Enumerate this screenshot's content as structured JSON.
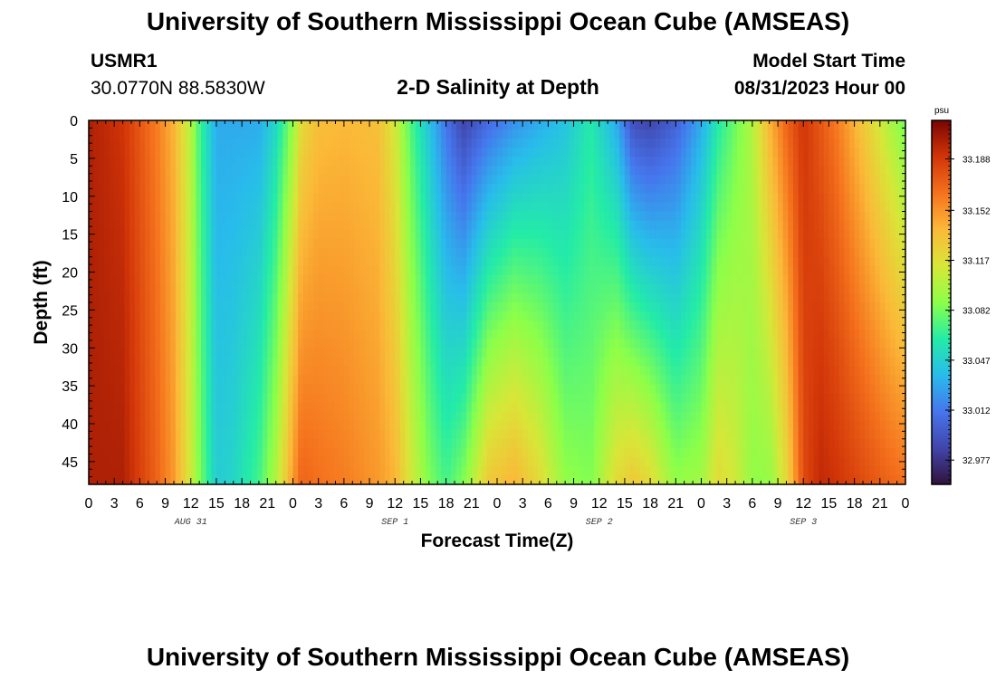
{
  "header": {
    "title": "University of Southern Mississippi Ocean Cube (AMSEAS)",
    "station_id": "USMR1",
    "coordinates": "30.0770N  88.5830W",
    "plot_title": "2-D Salinity at Depth",
    "model_start_label": "Model Start Time",
    "model_start_value": "08/31/2023 Hour 00"
  },
  "footer": {
    "title": "University of Southern Mississippi Ocean Cube (AMSEAS)"
  },
  "colors": {
    "background": "#ffffff",
    "text": "#000000"
  },
  "chart_data": {
    "type": "heatmap",
    "title": "2-D Salinity at Depth",
    "xlabel": "Forecast Time(Z)",
    "ylabel": "Depth (ft)",
    "colorbar_unit": "psu",
    "colorbar_ticks": [
      "33.188",
      "33.152",
      "33.117",
      "33.082",
      "33.047",
      "33.012",
      "32.977"
    ],
    "colorbar_tick_values": [
      33.188,
      33.152,
      33.117,
      33.082,
      33.047,
      33.012,
      32.977
    ],
    "vmin": 32.96,
    "vmax": 33.215,
    "x_range_hours": [
      0,
      96
    ],
    "x_tick_labels": [
      "0",
      "3",
      "6",
      "9",
      "12",
      "15",
      "18",
      "21",
      "0",
      "3",
      "6",
      "9",
      "12",
      "15",
      "18",
      "21",
      "0",
      "3",
      "6",
      "9",
      "12",
      "15",
      "18",
      "21",
      "0",
      "3",
      "6",
      "9",
      "12",
      "15",
      "18",
      "21",
      "0"
    ],
    "x_tick_hours": [
      0,
      3,
      6,
      9,
      12,
      15,
      18,
      21,
      24,
      27,
      30,
      33,
      36,
      39,
      42,
      45,
      48,
      51,
      54,
      57,
      60,
      63,
      66,
      69,
      72,
      75,
      78,
      81,
      84,
      87,
      90,
      93,
      96
    ],
    "date_labels": [
      {
        "text": "AUG 31",
        "hour": 12
      },
      {
        "text": "SEP 1",
        "hour": 36
      },
      {
        "text": "SEP 2",
        "hour": 60
      },
      {
        "text": "SEP 3",
        "hour": 84
      }
    ],
    "y_range_ft": [
      0,
      48
    ],
    "y_tick_labels": [
      "0",
      "5",
      "10",
      "15",
      "20",
      "25",
      "30",
      "35",
      "40",
      "45"
    ],
    "y_tick_values": [
      0,
      5,
      10,
      15,
      20,
      25,
      30,
      35,
      40,
      45
    ],
    "time_profile": {
      "hours": [
        0,
        4,
        8,
        10,
        12,
        13,
        15,
        17,
        20,
        22,
        24,
        25,
        27,
        30,
        34,
        36,
        38,
        40,
        42,
        44,
        47,
        50,
        53,
        56,
        59,
        62,
        64,
        66,
        69,
        72,
        74,
        76,
        78,
        80,
        82,
        84,
        86,
        88,
        91,
        94,
        96
      ],
      "surface": [
        33.2,
        33.19,
        33.16,
        33.14,
        33.1,
        33.07,
        33.03,
        33.03,
        33.03,
        33.05,
        33.09,
        33.12,
        33.135,
        33.138,
        33.135,
        33.11,
        33.07,
        33.04,
        33.01,
        32.985,
        33.005,
        33.02,
        33.03,
        33.04,
        33.06,
        33.03,
        32.99,
        32.985,
        33.0,
        33.03,
        33.06,
        33.08,
        33.1,
        33.14,
        33.17,
        33.19,
        33.175,
        33.16,
        33.13,
        33.1,
        33.08
      ],
      "bottom": [
        33.2,
        33.2,
        33.17,
        33.15,
        33.11,
        33.085,
        33.045,
        33.05,
        33.07,
        33.1,
        33.15,
        33.17,
        33.165,
        33.16,
        33.15,
        33.14,
        33.11,
        33.085,
        33.07,
        33.085,
        33.13,
        33.14,
        33.12,
        33.09,
        33.085,
        33.12,
        33.13,
        33.12,
        33.09,
        33.095,
        33.12,
        33.11,
        33.09,
        33.09,
        33.12,
        33.18,
        33.195,
        33.19,
        33.18,
        33.17,
        33.165
      ]
    }
  }
}
